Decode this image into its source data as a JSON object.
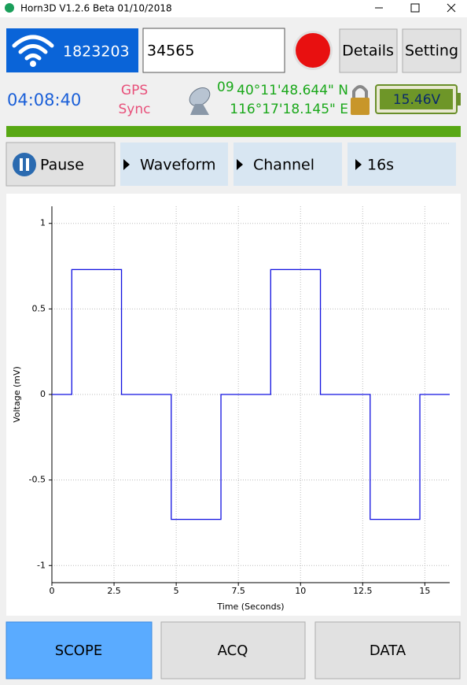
{
  "window": {
    "title": "Horn3D V1.2.6 Beta 01/10/2018"
  },
  "device": {
    "id": "1823203",
    "input": "34565",
    "details_button": "Details",
    "setting_button": "Setting"
  },
  "status": {
    "time": "04:08:40",
    "gps_line1": "GPS",
    "gps_line2": "Sync",
    "satellites": "09",
    "latitude": "40°11'48.644\" N",
    "longitude": "116°17'18.145\" E",
    "battery": "15.46V"
  },
  "controls": {
    "pause": "Pause",
    "waveform": "Waveform",
    "channel": "Channel",
    "duration": "16s"
  },
  "chart_data": {
    "type": "line",
    "xlabel": "Time (Seconds)",
    "ylabel": "Voltage (mV)",
    "color": "#1010e0",
    "x": [
      0,
      0.8,
      0.8,
      2.8,
      2.8,
      4.8,
      4.8,
      6.8,
      6.8,
      8.8,
      8.8,
      10.8,
      10.8,
      12.8,
      12.8,
      14.8,
      14.8,
      16
    ],
    "values": [
      0,
      0,
      0.73,
      0.73,
      0,
      0,
      -0.73,
      -0.73,
      0,
      0,
      0.73,
      0.73,
      0,
      0,
      -0.73,
      -0.73,
      0,
      0
    ],
    "xlim": [
      0,
      16
    ],
    "ylim": [
      -1.1,
      1.1
    ],
    "xticks": [
      0,
      2.5,
      5,
      7.5,
      10,
      12.5,
      15
    ],
    "yticks": [
      -1,
      -0.5,
      0,
      0.5,
      1
    ],
    "grid": true
  },
  "tabs": [
    "SCOPE",
    "ACQ",
    "DATA"
  ]
}
